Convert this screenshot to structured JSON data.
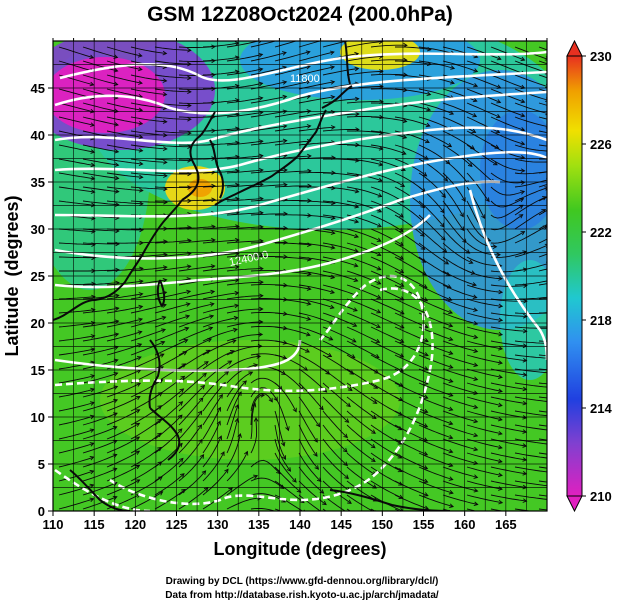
{
  "chart_data": {
    "type": "heatmap",
    "title": "GSM 12Z08Oct2024 (200.0hPa)",
    "xlabel": "Longitude (degrees)",
    "ylabel": "Latitude  (degrees)",
    "xlim": [
      110,
      170
    ],
    "ylim": [
      0,
      50
    ],
    "x_ticks": [
      110,
      115,
      120,
      125,
      130,
      135,
      140,
      145,
      150,
      155,
      160,
      165
    ],
    "y_ticks": [
      0,
      5,
      10,
      15,
      20,
      25,
      30,
      35,
      40,
      45
    ],
    "grid": true,
    "colorbar": {
      "min": 210,
      "max": 230,
      "ticks": [
        210,
        214,
        218,
        222,
        226,
        230
      ],
      "placement": "right"
    },
    "contour_labels": [
      "11800",
      "12400.0"
    ],
    "notes": [
      "Drawing by DCL (https://www.gfd-dennou.org/library/dcl/)",
      "Data from http://database.rish.kyoto-u.ac.jp/arch/jmadata/"
    ]
  },
  "colors": {
    "magenta": "#e020c0",
    "purple": "#8040d0",
    "blue": "#3070e8",
    "cyan": "#20c8d0",
    "green": "#30c820",
    "yellow_green": "#a0e010",
    "yellow": "#f0e000",
    "orange": "#f0a000",
    "red": "#e83020",
    "coast": "#0a0a0a",
    "contour": "#ffffff"
  }
}
